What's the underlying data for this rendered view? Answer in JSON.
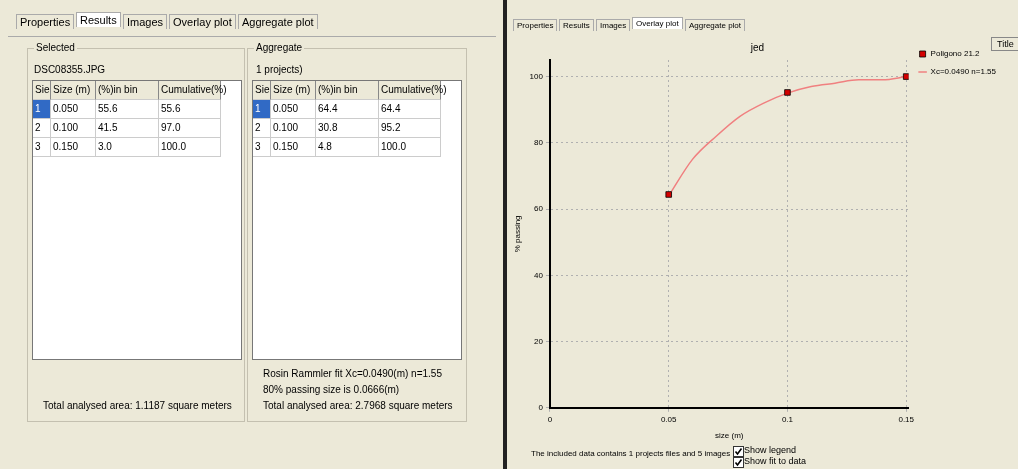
{
  "chart_data": [
    {
      "type": "other",
      "annotations": [
        "Properties",
        "Results",
        "Images",
        "Overlay plot",
        "Aggregate plot",
        "Selected",
        "DSC08355.JPG",
        "Sie",
        "Size (m)",
        "(%)in bin",
        "Cumulative(%)",
        "1",
        "0.050",
        "55.6",
        "55.6",
        "2",
        "0.100",
        "41.5",
        "97.0",
        "3",
        "0.150",
        "3.0",
        "100.0",
        "Total analysed area: 1.1187 square meters",
        "Aggregate",
        "1 projects)",
        "Sie",
        "Size (m)",
        "(%)in bin",
        "Cumulative(%)",
        "1",
        "0.050",
        "64.4",
        "64.4",
        "2",
        "0.100",
        "30.8",
        "95.2",
        "3",
        "0.150",
        "4.8",
        "100.0",
        "Rosin Rammler fit Xc=0.0490(m) n=1.55",
        "80% passing size is 0.0666(m)",
        "Total analysed area: 2.7968 square meters"
      ]
    },
    {
      "type": "scatter",
      "title": "jed",
      "xlabel": "size (m)",
      "ylabel": "% passing",
      "xlim": [
        0,
        0.151
      ],
      "xticks": [
        0,
        0.05,
        0.1,
        0.15
      ],
      "ylim": [
        0,
        105
      ],
      "yticks": [
        0,
        20,
        40,
        60,
        80,
        100
      ],
      "grid": true,
      "legend": "top right",
      "series": [
        {
          "name": "Poligono 21.2",
          "type": "scatter",
          "marker": "square",
          "color": "#d40000",
          "x": [
            0.05,
            0.1,
            0.15
          ],
          "values": [
            64.4,
            95.2,
            100
          ]
        },
        {
          "name": "Xc=0.0490 n=1.55",
          "type": "line",
          "marker": "none",
          "color": "#f08080",
          "x": [
            0.05,
            0.06,
            0.07,
            0.08,
            0.09,
            0.1,
            0.11,
            0.12,
            0.13,
            0.14,
            0.15
          ],
          "values": [
            64,
            75,
            82,
            88,
            92,
            95,
            97,
            98,
            99,
            99,
            100
          ]
        }
      ],
      "annotations": [
        "Properties",
        "Results",
        "Images",
        "Overlay plot",
        "Aggregate plot",
        "Title",
        "The included data contains 1 projects files and 5 images",
        "Show legend",
        "Show fit to data"
      ]
    }
  ]
}
